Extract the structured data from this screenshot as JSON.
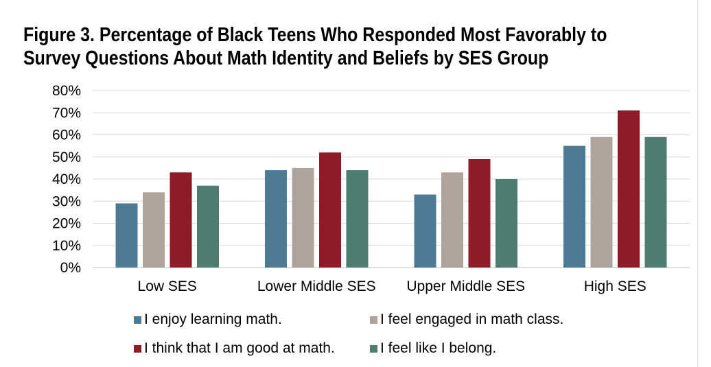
{
  "chart_data": {
    "type": "bar",
    "title": "Figure 3. Percentage of Black Teens Who Responded Most Favorably to Survey Questions About Math Identity and Beliefs by SES Group",
    "title_lines": [
      "Figure 3. Percentage of Black Teens Who Responded Most Favorably to",
      "Survey Questions About Math Identity and Beliefs by SES Group"
    ],
    "categories": [
      "Low SES",
      "Lower Middle SES",
      "Upper Middle SES",
      "High SES"
    ],
    "series": [
      {
        "name": "I enjoy learning math.",
        "color": "#4e7b94",
        "values": [
          29,
          44,
          33,
          55
        ]
      },
      {
        "name": "I feel engaged in math class.",
        "color": "#aea49d",
        "values": [
          34,
          45,
          43,
          59
        ]
      },
      {
        "name": "I think that I am good at math.",
        "color": "#8f1b27",
        "values": [
          43,
          52,
          49,
          71
        ]
      },
      {
        "name": "I feel like I belong.",
        "color": "#4e7c6f",
        "values": [
          37,
          44,
          40,
          59
        ]
      }
    ],
    "ylim": [
      0,
      80
    ],
    "yticks": [
      0,
      10,
      20,
      30,
      40,
      50,
      60,
      70,
      80
    ],
    "ytick_labels": [
      "0%",
      "10%",
      "20%",
      "30%",
      "40%",
      "50%",
      "60%",
      "70%",
      "80%"
    ],
    "xlabel": "",
    "ylabel": "",
    "grid": true,
    "legend_position": "bottom"
  }
}
